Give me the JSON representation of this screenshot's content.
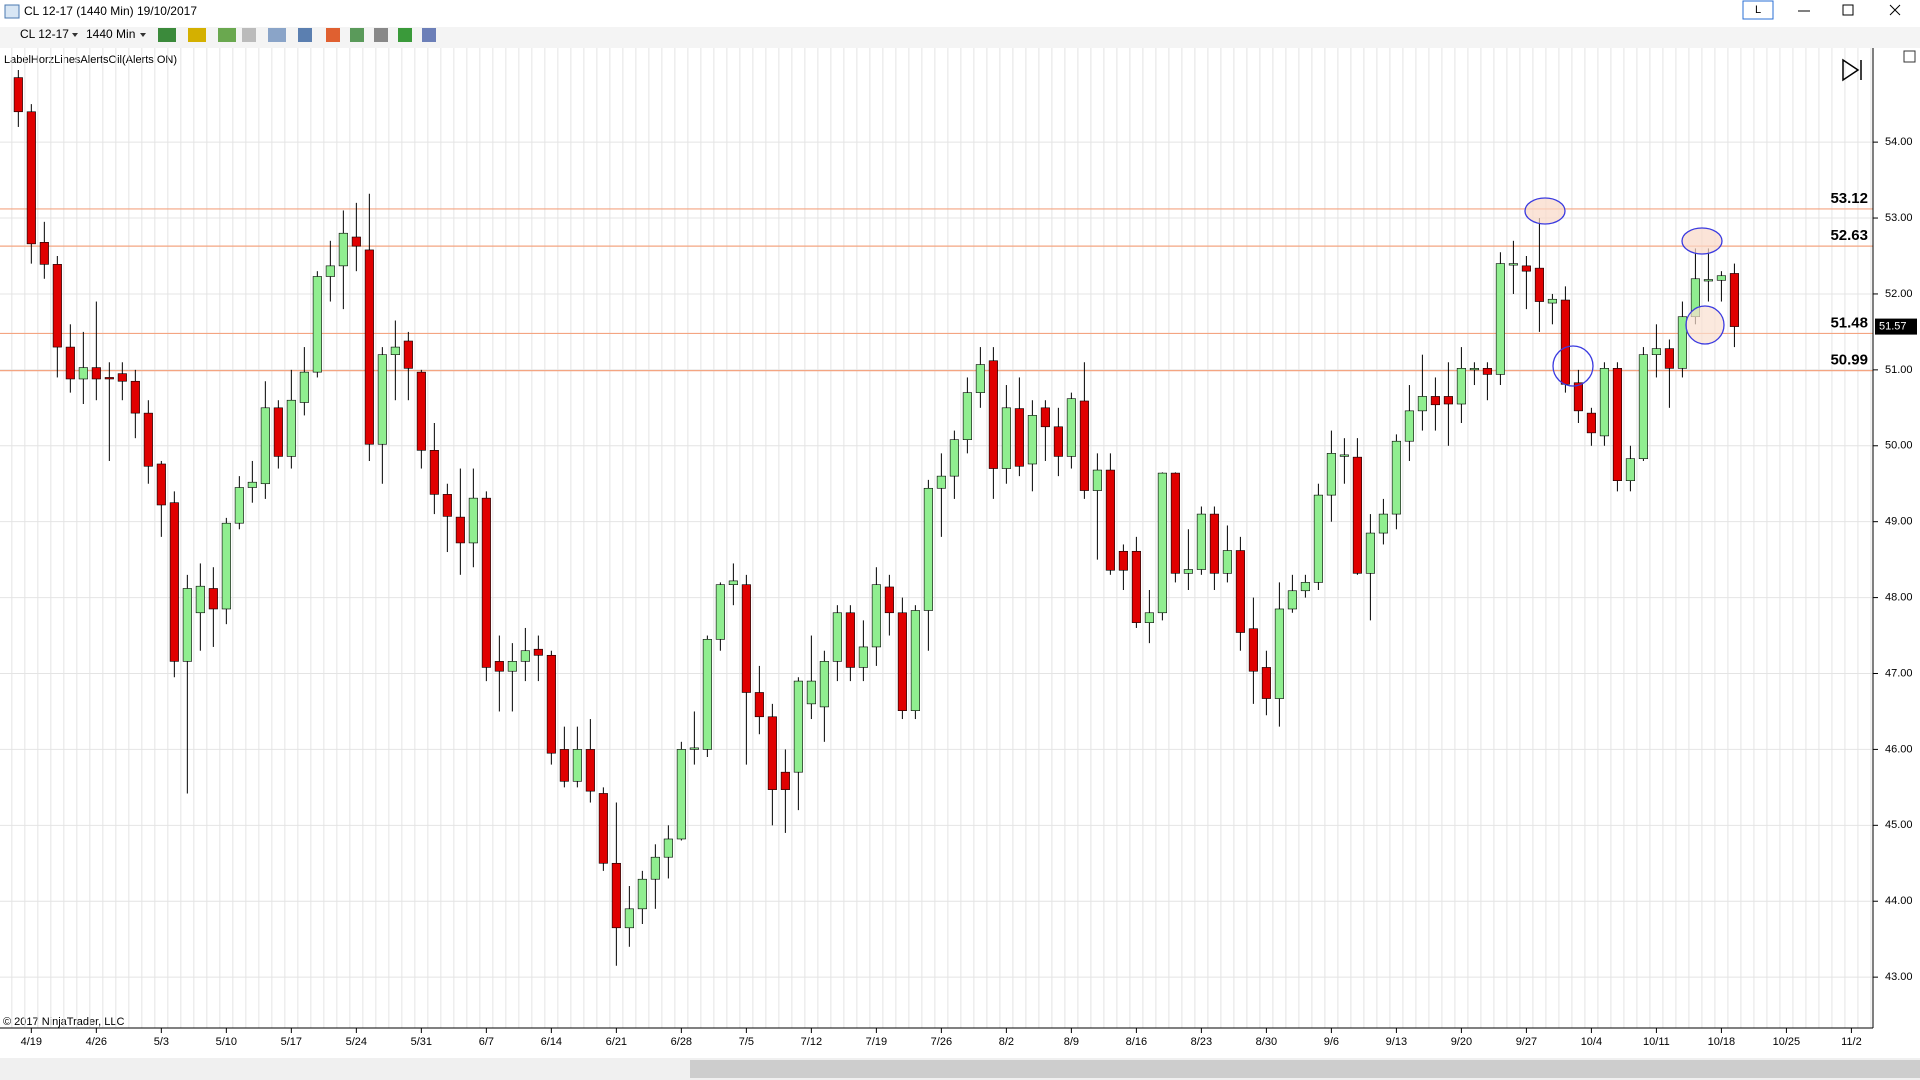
{
  "window": {
    "title": "CL 12-17 (1440 Min)  19/10/2017",
    "button": "L"
  },
  "toolbar": {
    "instrument": "CL 12-17",
    "period": "1440 Min"
  },
  "indicator_label": "LabelHorzLinesAlertsOil(Alerts ON)",
  "copyright": "© 2017 NinjaTrader, LLC",
  "chart_data": {
    "type": "candlestick",
    "up_color": "#90ee90",
    "down_color": "#e00000",
    "outline_color": "#000000",
    "open": [
      54.85,
      54.4,
      52.68,
      52.39,
      51.3,
      50.88,
      51.03,
      50.9,
      50.95,
      50.85,
      50.43,
      49.76,
      49.25,
      47.16,
      47.8,
      48.12,
      47.85,
      48.98,
      49.45,
      49.5,
      50.5,
      49.86,
      50.57,
      50.97,
      52.23,
      52.37,
      52.75,
      52.58,
      50.02,
      51.2,
      51.38,
      50.97,
      49.94,
      49.36,
      49.06,
      48.72,
      49.31,
      47.16,
      47.03,
      47.16,
      47.32,
      47.24,
      46.0,
      45.58,
      46.0,
      45.42,
      44.5,
      43.65,
      43.9,
      44.29,
      44.58,
      44.82,
      46.0,
      46.0,
      47.45,
      48.17,
      48.17,
      46.75,
      46.43,
      45.7,
      45.7,
      46.6,
      46.56,
      47.16,
      47.8,
      47.08,
      47.35,
      48.14,
      47.8,
      46.51,
      47.83,
      49.44,
      49.6,
      50.08,
      50.7,
      51.12,
      49.7,
      50.49,
      49.76,
      50.5,
      50.25,
      49.86,
      50.59,
      49.41,
      49.68,
      48.61,
      48.61,
      47.67,
      47.8,
      49.64,
      48.32,
      48.37,
      49.1,
      48.32,
      48.62,
      47.59,
      47.08,
      46.67,
      47.85,
      48.09,
      48.2,
      49.35,
      49.86,
      49.85,
      48.32,
      48.85,
      49.1,
      50.06,
      50.46,
      50.65,
      50.65,
      50.55,
      51.0,
      51.02,
      50.94,
      52.38,
      52.37,
      52.34,
      51.88,
      51.92,
      50.83,
      50.43,
      50.13,
      51.02,
      49.54,
      49.83,
      51.2,
      51.28,
      51.02,
      51.7,
      52.18,
      52.18,
      52.27
    ],
    "high": [
      54.95,
      54.5,
      52.95,
      52.5,
      51.6,
      51.5,
      51.9,
      51.1,
      51.1,
      51.0,
      50.6,
      49.8,
      49.4,
      48.3,
      48.45,
      48.4,
      49.05,
      49.6,
      49.8,
      50.85,
      50.6,
      51.0,
      51.3,
      52.3,
      52.7,
      53.1,
      53.2,
      53.32,
      51.3,
      51.65,
      51.5,
      51.0,
      50.3,
      49.5,
      49.7,
      49.7,
      49.4,
      47.5,
      47.4,
      47.6,
      47.5,
      47.3,
      46.3,
      46.3,
      46.4,
      45.5,
      45.3,
      44.2,
      44.4,
      44.75,
      45.0,
      46.1,
      46.5,
      47.5,
      48.2,
      48.45,
      48.3,
      47.1,
      46.6,
      46.0,
      46.95,
      47.5,
      47.3,
      47.9,
      47.9,
      47.7,
      48.4,
      48.3,
      48.0,
      47.9,
      49.55,
      49.9,
      50.2,
      50.9,
      51.3,
      51.3,
      50.8,
      50.9,
      50.6,
      50.6,
      50.5,
      50.7,
      51.1,
      49.9,
      49.9,
      48.7,
      48.8,
      48.1,
      49.65,
      49.65,
      48.9,
      49.2,
      49.2,
      48.95,
      48.8,
      48.0,
      47.3,
      48.2,
      48.3,
      48.3,
      49.5,
      50.2,
      50.1,
      50.1,
      49.1,
      49.3,
      50.15,
      50.8,
      51.2,
      50.9,
      51.1,
      51.3,
      51.1,
      51.1,
      52.55,
      52.7,
      52.5,
      53.0,
      52.0,
      52.1,
      51.0,
      50.5,
      51.1,
      51.1,
      50.0,
      51.3,
      51.6,
      51.4,
      51.9,
      52.6,
      52.6,
      52.3,
      52.4
    ],
    "low": [
      54.2,
      52.4,
      52.2,
      50.9,
      50.7,
      50.55,
      50.6,
      49.8,
      50.6,
      50.1,
      49.5,
      48.8,
      46.95,
      45.42,
      47.3,
      47.35,
      47.65,
      48.9,
      49.25,
      49.3,
      49.7,
      49.7,
      50.4,
      50.9,
      51.9,
      51.8,
      52.3,
      49.8,
      49.5,
      50.6,
      50.6,
      49.7,
      49.1,
      48.6,
      48.3,
      48.4,
      46.9,
      46.5,
      46.5,
      46.9,
      46.9,
      45.8,
      45.5,
      45.5,
      45.3,
      44.4,
      43.15,
      43.4,
      43.7,
      43.9,
      44.3,
      44.8,
      45.8,
      45.9,
      47.3,
      47.9,
      45.8,
      46.2,
      45.0,
      44.9,
      45.2,
      46.4,
      46.1,
      46.9,
      46.9,
      46.9,
      47.1,
      47.5,
      46.4,
      46.4,
      47.3,
      48.8,
      49.3,
      49.9,
      50.5,
      49.3,
      49.5,
      49.6,
      49.4,
      49.8,
      49.6,
      49.7,
      49.3,
      48.5,
      48.3,
      48.1,
      47.6,
      47.4,
      47.7,
      48.2,
      48.1,
      48.3,
      48.1,
      48.2,
      47.3,
      46.6,
      46.45,
      46.3,
      47.8,
      48.0,
      48.1,
      49.0,
      49.5,
      48.3,
      47.7,
      48.7,
      48.9,
      49.8,
      50.2,
      50.2,
      50.0,
      50.3,
      50.8,
      50.6,
      50.8,
      52.0,
      51.8,
      51.5,
      51.6,
      50.7,
      50.3,
      50.0,
      50.0,
      49.4,
      49.4,
      49.8,
      50.9,
      50.5,
      50.9,
      51.6,
      51.9,
      51.9,
      51.3
    ],
    "close": [
      54.4,
      52.66,
      52.39,
      51.3,
      50.88,
      51.03,
      50.88,
      50.88,
      50.85,
      50.43,
      49.73,
      49.22,
      47.16,
      48.12,
      48.15,
      47.85,
      48.98,
      49.45,
      49.52,
      50.5,
      49.86,
      50.6,
      50.97,
      52.23,
      52.37,
      52.8,
      52.63,
      50.02,
      51.2,
      51.3,
      51.02,
      49.94,
      49.36,
      49.07,
      48.72,
      49.31,
      47.08,
      47.03,
      47.16,
      47.3,
      47.24,
      45.95,
      45.58,
      46.0,
      45.45,
      44.5,
      43.65,
      43.9,
      44.29,
      44.58,
      44.82,
      46.0,
      46.02,
      47.45,
      48.17,
      48.22,
      46.75,
      46.43,
      45.47,
      45.47,
      46.9,
      46.9,
      47.16,
      47.8,
      47.08,
      47.35,
      48.17,
      47.8,
      46.51,
      47.83,
      49.44,
      49.6,
      50.08,
      50.7,
      51.07,
      49.7,
      50.5,
      49.73,
      50.4,
      50.25,
      49.86,
      50.62,
      49.41,
      49.68,
      48.36,
      48.36,
      47.67,
      47.8,
      49.64,
      48.32,
      48.37,
      49.1,
      48.32,
      48.62,
      47.54,
      47.03,
      46.67,
      47.85,
      48.09,
      48.2,
      49.35,
      49.9,
      49.88,
      48.32,
      48.85,
      49.1,
      50.06,
      50.46,
      50.65,
      50.54,
      50.55,
      51.02,
      51.02,
      50.94,
      52.4,
      52.4,
      52.3,
      51.9,
      51.93,
      50.81,
      50.46,
      50.17,
      51.02,
      49.54,
      49.83,
      51.2,
      51.28,
      51.02,
      51.7,
      52.2,
      52.19,
      52.24,
      51.57
    ],
    "hlines": [
      53.12,
      52.63,
      51.48,
      50.99
    ],
    "hline_color": "#f4a582",
    "hline_label_color": "#f08050",
    "ylim": [
      42.33,
      55.24
    ],
    "yticks": [
      {
        "value": 43,
        "label": "43.00"
      },
      {
        "value": 44,
        "label": "44.00"
      },
      {
        "value": 45,
        "label": "45.00"
      },
      {
        "value": 46,
        "label": "46.00"
      },
      {
        "value": 47,
        "label": "47.00"
      },
      {
        "value": 48,
        "label": "48.00"
      },
      {
        "value": 49,
        "label": "49.00"
      },
      {
        "value": 50,
        "label": "50.00"
      },
      {
        "value": 51,
        "label": "51.00"
      },
      {
        "value": 52,
        "label": "52.00"
      },
      {
        "value": 53,
        "label": "53.00"
      },
      {
        "value": 54,
        "label": "54.00"
      }
    ],
    "xlim": [
      -1.41,
      142.66
    ],
    "xticks": [
      {
        "value": 1,
        "label": "4/19"
      },
      {
        "value": 6,
        "label": "4/26"
      },
      {
        "value": 11,
        "label": "5/3"
      },
      {
        "value": 16,
        "label": "5/10"
      },
      {
        "value": 21,
        "label": "5/17"
      },
      {
        "value": 26,
        "label": "5/24"
      },
      {
        "value": 31,
        "label": "5/31"
      },
      {
        "value": 36,
        "label": "6/7"
      },
      {
        "value": 41,
        "label": "6/14"
      },
      {
        "value": 46,
        "label": "6/21"
      },
      {
        "value": 51,
        "label": "6/28"
      },
      {
        "value": 56,
        "label": "7/5"
      },
      {
        "value": 61,
        "label": "7/12"
      },
      {
        "value": 66,
        "label": "7/19"
      },
      {
        "value": 71,
        "label": "7/26"
      },
      {
        "value": 76,
        "label": "8/2"
      },
      {
        "value": 81,
        "label": "8/9"
      },
      {
        "value": 86,
        "label": "8/16"
      },
      {
        "value": 91,
        "label": "8/23"
      },
      {
        "value": 96,
        "label": "8/30"
      },
      {
        "value": 101,
        "label": "9/6"
      },
      {
        "value": 106,
        "label": "9/13"
      },
      {
        "value": 111,
        "label": "9/20"
      },
      {
        "value": 116,
        "label": "9/27"
      },
      {
        "value": 121,
        "label": "10/4"
      },
      {
        "value": 126,
        "label": "10/11"
      },
      {
        "value": 131,
        "label": "10/18"
      },
      {
        "value": 136,
        "label": "10/25"
      },
      {
        "value": 141,
        "label": "11/2"
      }
    ],
    "grid": true
  }
}
